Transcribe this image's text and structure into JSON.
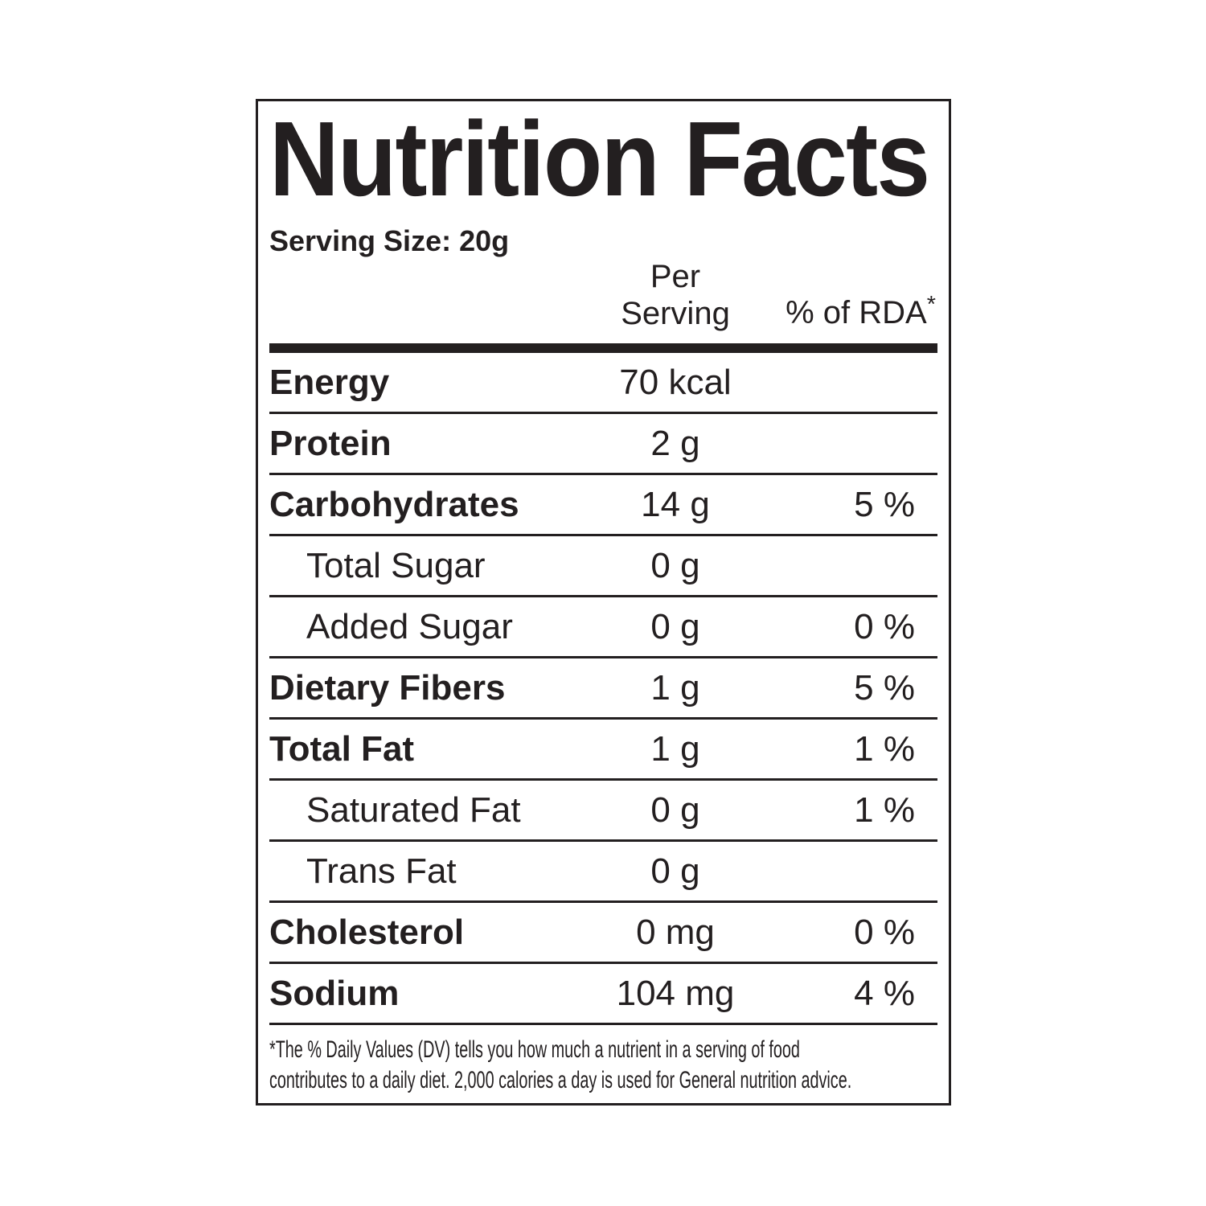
{
  "label": {
    "title": "Nutrition Facts",
    "serving_size": "Serving Size: 20g",
    "columns": {
      "per_serving_line1": "Per",
      "per_serving_line2": "Serving",
      "rda": "% of RDA",
      "rda_asterisk": "*"
    },
    "rows": [
      {
        "name": "Energy",
        "value": "70 kcal",
        "rda": "",
        "indent": false
      },
      {
        "name": "Protein",
        "value": "2 g",
        "rda": "",
        "indent": false
      },
      {
        "name": "Carbohydrates",
        "value": "14 g",
        "rda": "5 %",
        "indent": false
      },
      {
        "name": "Total Sugar",
        "value": "0 g",
        "rda": "",
        "indent": true
      },
      {
        "name": "Added Sugar",
        "value": "0 g",
        "rda": "0 %",
        "indent": true
      },
      {
        "name": "Dietary Fibers",
        "value": "1 g",
        "rda": "5 %",
        "indent": false
      },
      {
        "name": "Total Fat",
        "value": "1 g",
        "rda": "1 %",
        "indent": false
      },
      {
        "name": "Saturated Fat",
        "value": "0 g",
        "rda": "1 %",
        "indent": true
      },
      {
        "name": "Trans Fat",
        "value": "0 g",
        "rda": "",
        "indent": true
      },
      {
        "name": "Cholesterol",
        "value": "0 mg",
        "rda": "0 %",
        "indent": false
      },
      {
        "name": "Sodium",
        "value": "104 mg",
        "rda": "4 %",
        "indent": false
      }
    ],
    "footnote_line1": "*The % Daily Values (DV) tells you how much a nutrient in a serving of food",
    "footnote_line2": "contributes to a daily diet. 2,000 calories a day is used for General nutrition advice.",
    "colors": {
      "text": "#231f20",
      "lines": "#231f20",
      "background": "#ffffff"
    }
  }
}
